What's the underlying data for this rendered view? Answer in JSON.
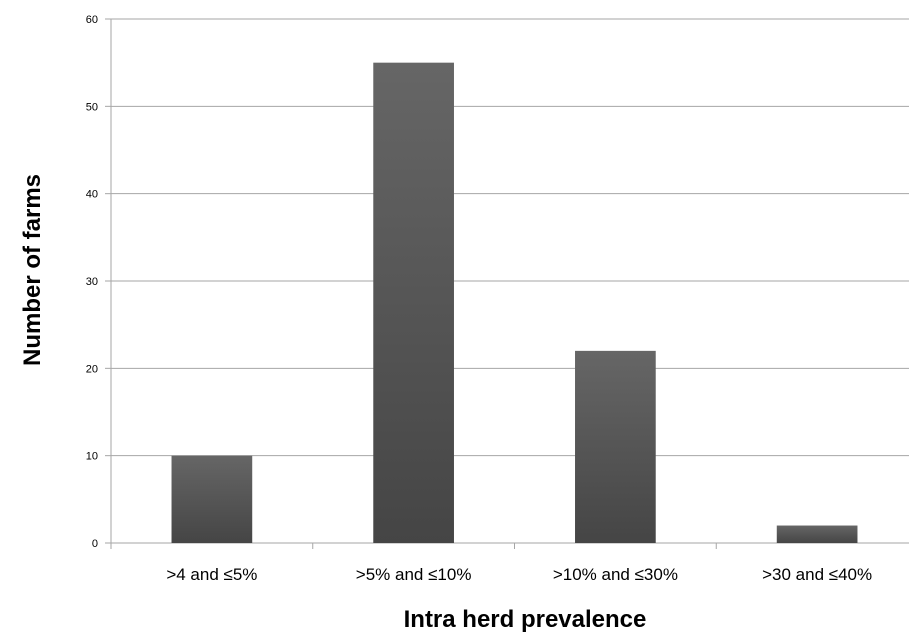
{
  "chart_data": {
    "type": "bar",
    "categories": [
      ">4 and ≤5%",
      ">5% and ≤10%",
      ">10% and ≤30%",
      ">30 and ≤40%"
    ],
    "values": [
      10,
      55,
      22,
      2
    ],
    "title": "",
    "xlabel": "Intra herd prevalence",
    "ylabel": "Number of  farms",
    "ylim": [
      0,
      60
    ],
    "yticks": [
      0,
      10,
      20,
      30,
      40,
      50,
      60
    ],
    "grid": true,
    "legend": "none",
    "bar_color": "#555555",
    "grid_color": "#a6a6a6"
  }
}
